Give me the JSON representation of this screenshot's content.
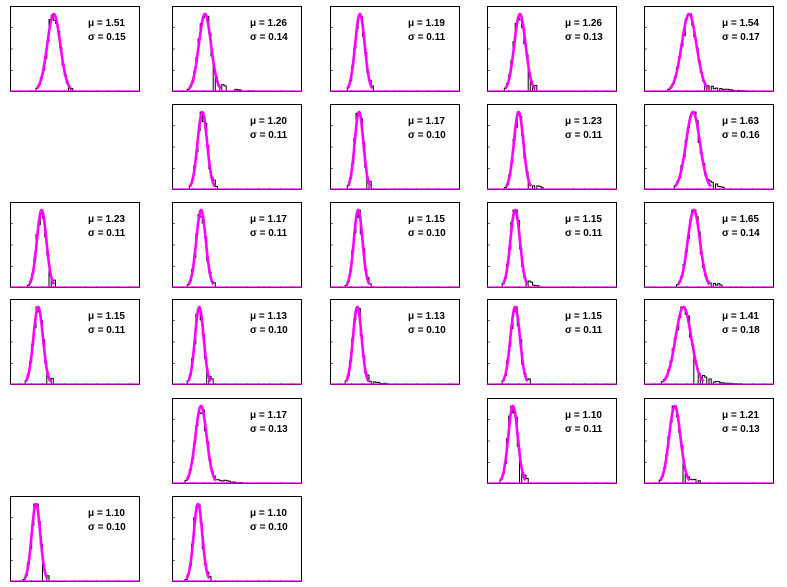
{
  "chart_data": [
    {
      "type": "histogram",
      "position": "row1-col1",
      "fit": {
        "mu": 1.51,
        "sigma": 0.15
      },
      "text": {
        "mu": "μ = 1.51",
        "sigma": "σ = 0.15"
      },
      "tail": "short"
    },
    {
      "type": "histogram",
      "position": "row1-col2",
      "fit": {
        "mu": 1.26,
        "sigma": 0.14
      },
      "text": {
        "mu": "μ = 1.26",
        "sigma": "σ = 0.14"
      },
      "tail": "long"
    },
    {
      "type": "histogram",
      "position": "row1-col3",
      "fit": {
        "mu": 1.19,
        "sigma": 0.11
      },
      "text": {
        "mu": "μ = 1.19",
        "sigma": "σ = 0.11"
      },
      "tail": "short"
    },
    {
      "type": "histogram",
      "position": "row1-col4",
      "fit": {
        "mu": 1.26,
        "sigma": 0.13
      },
      "text": {
        "mu": "μ = 1.26",
        "sigma": "σ = 0.13"
      },
      "tail": "short"
    },
    {
      "type": "histogram",
      "position": "row1-col5",
      "fit": {
        "mu": 1.54,
        "sigma": 0.17
      },
      "text": {
        "mu": "μ = 1.54",
        "sigma": "σ = 0.17"
      },
      "tail": "long"
    },
    {
      "type": "histogram",
      "position": "row2-col2",
      "fit": {
        "mu": 1.2,
        "sigma": 0.11
      },
      "text": {
        "mu": "μ = 1.20",
        "sigma": "σ = 0.11"
      },
      "tail": "short"
    },
    {
      "type": "histogram",
      "position": "row2-col3",
      "fit": {
        "mu": 1.17,
        "sigma": 0.1
      },
      "text": {
        "mu": "μ = 1.17",
        "sigma": "σ = 0.10"
      },
      "tail": "short"
    },
    {
      "type": "histogram",
      "position": "row2-col4",
      "fit": {
        "mu": 1.23,
        "sigma": 0.11
      },
      "text": {
        "mu": "μ = 1.23",
        "sigma": "σ = 0.11"
      },
      "tail": "medium"
    },
    {
      "type": "histogram",
      "position": "row2-col5",
      "fit": {
        "mu": 1.63,
        "sigma": 0.16
      },
      "text": {
        "mu": "μ = 1.63",
        "sigma": "σ = 0.16"
      },
      "tail": "medium"
    },
    {
      "type": "histogram",
      "position": "row3-col1",
      "fit": {
        "mu": 1.23,
        "sigma": 0.11
      },
      "text": {
        "mu": "μ = 1.23",
        "sigma": "σ = 0.11"
      },
      "tail": "short"
    },
    {
      "type": "histogram",
      "position": "row3-col2",
      "fit": {
        "mu": 1.17,
        "sigma": 0.11
      },
      "text": {
        "mu": "μ = 1.17",
        "sigma": "σ = 0.11"
      },
      "tail": "short"
    },
    {
      "type": "histogram",
      "position": "row3-col3",
      "fit": {
        "mu": 1.15,
        "sigma": 0.1
      },
      "text": {
        "mu": "μ = 1.15",
        "sigma": "σ = 0.10"
      },
      "tail": "short"
    },
    {
      "type": "histogram",
      "position": "row3-col4",
      "fit": {
        "mu": 1.15,
        "sigma": 0.11
      },
      "text": {
        "mu": "μ = 1.15",
        "sigma": "σ = 0.11"
      },
      "tail": "medium"
    },
    {
      "type": "histogram",
      "position": "row3-col5",
      "fit": {
        "mu": 1.65,
        "sigma": 0.14
      },
      "text": {
        "mu": "μ = 1.65",
        "sigma": "σ = 0.14"
      },
      "tail": "medium"
    },
    {
      "type": "histogram",
      "position": "row4-col1",
      "fit": {
        "mu": 1.15,
        "sigma": 0.11
      },
      "text": {
        "mu": "μ = 1.15",
        "sigma": "σ = 0.11"
      },
      "tail": "short"
    },
    {
      "type": "histogram",
      "position": "row4-col2",
      "fit": {
        "mu": 1.13,
        "sigma": 0.1
      },
      "text": {
        "mu": "μ = 1.13",
        "sigma": "σ = 0.10"
      },
      "tail": "short"
    },
    {
      "type": "histogram",
      "position": "row4-col3",
      "fit": {
        "mu": 1.13,
        "sigma": 0.1
      },
      "text": {
        "mu": "μ = 1.13",
        "sigma": "σ = 0.10"
      },
      "tail": "long"
    },
    {
      "type": "histogram",
      "position": "row4-col4",
      "fit": {
        "mu": 1.15,
        "sigma": 0.11
      },
      "text": {
        "mu": "μ = 1.15",
        "sigma": "σ = 0.11"
      },
      "tail": "short"
    },
    {
      "type": "histogram",
      "position": "row4-col5",
      "fit": {
        "mu": 1.41,
        "sigma": 0.18
      },
      "text": {
        "mu": "μ = 1.41",
        "sigma": "σ = 0.18"
      },
      "tail": "long"
    },
    {
      "type": "histogram",
      "position": "row5-col2",
      "fit": {
        "mu": 1.17,
        "sigma": 0.13
      },
      "text": {
        "mu": "μ = 1.17",
        "sigma": "σ = 0.13"
      },
      "tail": "long"
    },
    {
      "type": "histogram",
      "position": "row5-col4",
      "fit": {
        "mu": 1.1,
        "sigma": 0.11
      },
      "text": {
        "mu": "μ = 1.10",
        "sigma": "σ = 0.11"
      },
      "tail": "short"
    },
    {
      "type": "histogram",
      "position": "row5-col5",
      "fit": {
        "mu": 1.21,
        "sigma": 0.13
      },
      "text": {
        "mu": "μ = 1.21",
        "sigma": "σ = 0.13"
      },
      "tail": "medium"
    },
    {
      "type": "histogram",
      "position": "row6-col1",
      "fit": {
        "mu": 1.1,
        "sigma": 0.1
      },
      "text": {
        "mu": "μ = 1.10",
        "sigma": "σ = 0.10"
      },
      "tail": "short"
    },
    {
      "type": "histogram",
      "position": "row6-col2",
      "fit": {
        "mu": 1.1,
        "sigma": 0.1
      },
      "text": {
        "mu": "μ = 1.10",
        "sigma": "σ = 0.10"
      },
      "tail": "short"
    }
  ],
  "colors": {
    "fit_curve": "#ff00ff",
    "histogram": "#000000",
    "frame": "#000000",
    "background": "#ffffff"
  }
}
